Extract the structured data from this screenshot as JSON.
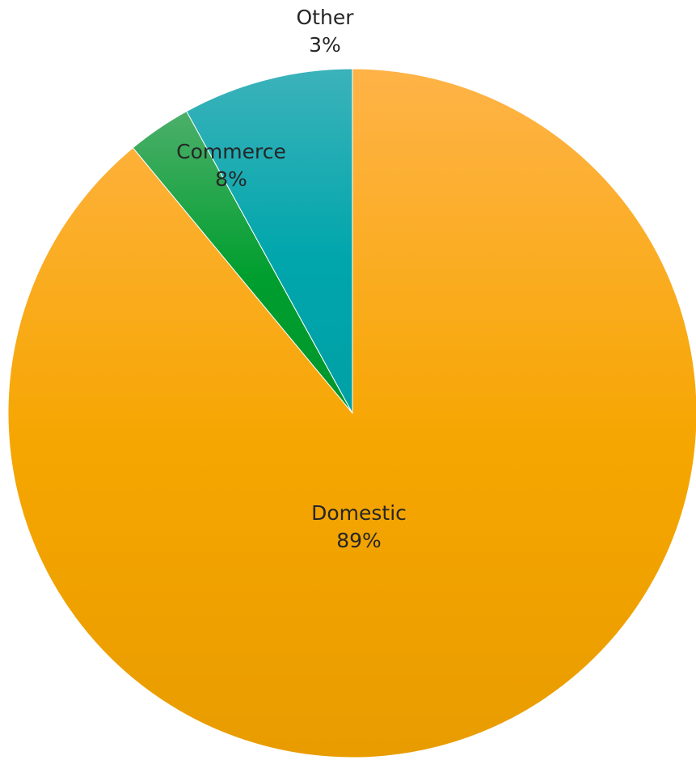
{
  "chart_data": {
    "type": "pie",
    "title": "",
    "start_angle_deg": 0,
    "direction": "clockwise",
    "slices": [
      {
        "name": "Domestic",
        "value": 89,
        "label": "89%",
        "color": "#F6A600",
        "color_light": "#FFB347",
        "color_dark": "#E89C00"
      },
      {
        "name": "Other",
        "value": 3,
        "label": "3%",
        "color": "#009E2E",
        "color_light": "#4CAF6A",
        "color_dark": "#00962C"
      },
      {
        "name": "Commerce",
        "value": 8,
        "label": "8%",
        "color": "#00A6AC",
        "color_light": "#3CB2BA",
        "color_dark": "#00A0A6"
      }
    ],
    "legend": "none"
  }
}
